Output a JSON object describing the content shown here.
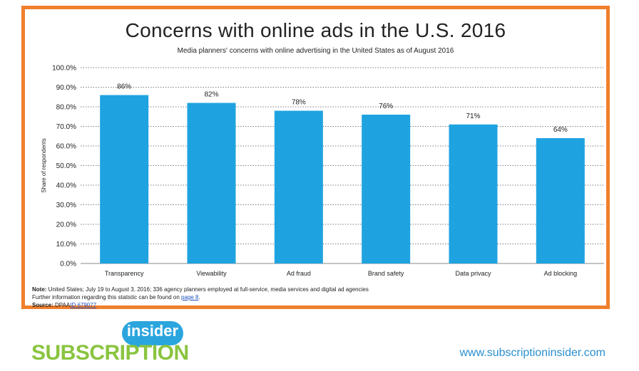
{
  "chart_data": {
    "type": "bar",
    "title": "Concerns with online ads in the U.S. 2016",
    "subtitle": "Media planners' concerns with online advertising in the United States as of August 2016",
    "ylabel": "Share of respondents",
    "xlabel": "",
    "categories": [
      "Transparency",
      "Viewability",
      "Ad fraud",
      "Brand safety",
      "Data privacy",
      "Ad blocking"
    ],
    "values": [
      86,
      82,
      78,
      76,
      71,
      64
    ],
    "value_labels": [
      "86%",
      "82%",
      "78%",
      "76%",
      "71%",
      "64%"
    ],
    "yticks": [
      "0.0%",
      "10.0%",
      "20.0%",
      "30.0%",
      "40.0%",
      "50.0%",
      "60.0%",
      "70.0%",
      "80.0%",
      "90.0%",
      "100.0%"
    ],
    "ylim": [
      0,
      100
    ],
    "grid": true,
    "bar_color": "#1fa3e0"
  },
  "note": {
    "note_label": "Note:",
    "note_text": " United States; July 19 to August 3, 2016; 336 agency planners employed at full-service, media services and digital ad agencies",
    "further_text": "Further information regarding this statistic can be found on ",
    "further_link": "page 8",
    "further_end": ".",
    "source_label": "Source:",
    "source_text": " DPAA",
    "source_link": "ID 679077"
  },
  "branding": {
    "logo_word_main": "SUBSCRIPTION",
    "logo_word_bubble": "insider",
    "url": "www.subscriptioninsider.com"
  },
  "colors": {
    "frame": "#f07f2d",
    "bar": "#1fa3e0",
    "logo_green": "#8ac43f",
    "logo_blue": "#2aa5de"
  }
}
